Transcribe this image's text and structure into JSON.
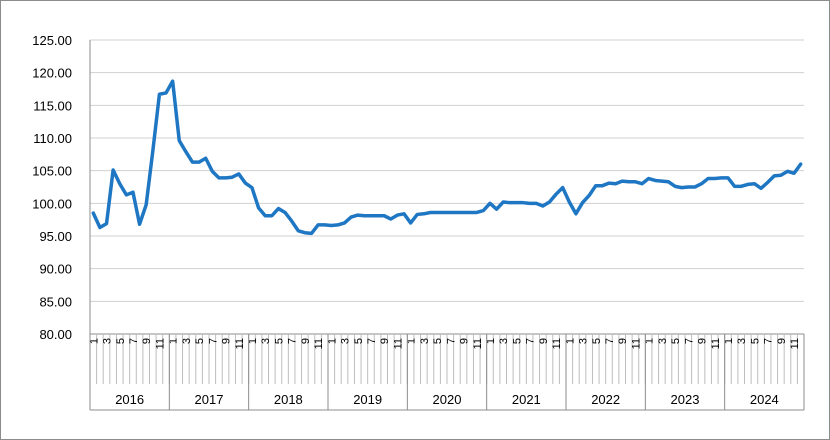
{
  "chart_data": {
    "type": "line",
    "title": "",
    "xlabel": "",
    "ylabel": "",
    "ylim": [
      80,
      125
    ],
    "y_ticks": [
      "125.00",
      "120.00",
      "115.00",
      "110.00",
      "105.00",
      "100.00",
      "95.00",
      "90.00",
      "85.00",
      "80.00"
    ],
    "year_labels": [
      "2016",
      "2017",
      "2018",
      "2019",
      "2020",
      "2021",
      "2022",
      "2023",
      "2024"
    ],
    "month_labels": [
      "1",
      "3",
      "5",
      "7",
      "9",
      "11"
    ],
    "grid": "horizontal",
    "legend": "none",
    "line_color": "#1f77c4",
    "series": [
      {
        "values": [
          98.5,
          96.3,
          96.9,
          105.1,
          103.0,
          101.3,
          101.7,
          96.8,
          99.8,
          108.0,
          116.7,
          116.9,
          118.7,
          109.6,
          107.9,
          106.3,
          106.3,
          106.9,
          104.9,
          103.9,
          103.9,
          104.0,
          104.5,
          103.1,
          102.4,
          99.3,
          98.1,
          98.1,
          99.2,
          98.6,
          97.3,
          95.8,
          95.5,
          95.4,
          96.7,
          96.7,
          96.6,
          96.7,
          97.0,
          97.9,
          98.2,
          98.1,
          98.1,
          98.1,
          98.1,
          97.6,
          98.2,
          98.4,
          97.0,
          98.3,
          98.4,
          98.6,
          98.6,
          98.6,
          98.6,
          98.6,
          98.6,
          98.6,
          98.6,
          98.9,
          100.0,
          99.1,
          100.2,
          100.1,
          100.1,
          100.1,
          100.0,
          100.0,
          99.6,
          100.2,
          101.4,
          102.4,
          100.2,
          98.4,
          100.1,
          101.2,
          102.7,
          102.7,
          103.1,
          103.0,
          103.4,
          103.3,
          103.3,
          103.0,
          103.8,
          103.5,
          103.4,
          103.3,
          102.6,
          102.4,
          102.5,
          102.5,
          103.0,
          103.8,
          103.8,
          103.9,
          103.9,
          102.6,
          102.6,
          102.9,
          103.0,
          102.3,
          103.2,
          104.2,
          104.3,
          104.9,
          104.6,
          106.0
        ]
      }
    ]
  }
}
